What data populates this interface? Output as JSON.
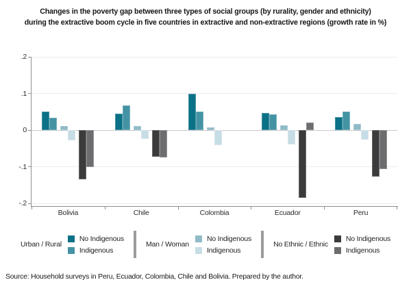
{
  "title": {
    "line1": "Changes in the poverty gap between three types of social groups (by rurality, gender and ethnicity)",
    "line2": "during the extractive boom cycle in five countries in extractive and non-extractive regions (growth rate in %)"
  },
  "source": "Source: Household surveys in Peru, Ecuador, Colombia, Chile and Bolivia. Prepared by the author.",
  "chart_data": {
    "type": "bar",
    "categories": [
      "Bolivia",
      "Chile",
      "Colombia",
      "Ecuador",
      "Peru"
    ],
    "series": [
      {
        "name": "Urban / Rural - No Indigenous",
        "color": "#0a7187",
        "values": [
          0.05,
          0.044,
          0.1,
          0.047,
          0.036
        ]
      },
      {
        "name": "Urban / Rural - Indigenous",
        "color": "#4493a4",
        "values": [
          0.033,
          0.067,
          0.05,
          0.043,
          0.051
        ]
      },
      {
        "name": "Man / Woman - No Indigenous",
        "color": "#8fbac7",
        "values": [
          0.012,
          0.012,
          0.008,
          0.013,
          0.016
        ]
      },
      {
        "name": "Man / Woman - Indigenous",
        "color": "#c7dde5",
        "values": [
          -0.028,
          -0.025,
          -0.042,
          -0.04,
          -0.026
        ]
      },
      {
        "name": "No Ethnic / Ethnic - No Indigenous",
        "color": "#3b3b3c",
        "values": [
          -0.135,
          -0.073,
          null,
          -0.185,
          -0.128
        ]
      },
      {
        "name": "No Ethnic / Ethnic - Indigenous",
        "color": "#6d6d70",
        "values": [
          -0.1,
          -0.075,
          null,
          0.02,
          -0.106
        ]
      }
    ],
    "ylim": [
      -0.2,
      0.2
    ],
    "yticks": [
      {
        "value": 0.2,
        "label": ".2"
      },
      {
        "value": 0.1,
        "label": ".1"
      },
      {
        "value": 0.0,
        "label": "0"
      },
      {
        "value": -0.1,
        "label": "-.1"
      },
      {
        "value": -0.2,
        "label": "-.2"
      }
    ],
    "grid": true,
    "legend_position": "bottom"
  },
  "legend": {
    "groups": [
      {
        "label": "Urban / Rural",
        "items": [
          {
            "label": "No Indigenous",
            "color": "#0a7187"
          },
          {
            "label": "Indigenous",
            "color": "#4493a4"
          }
        ]
      },
      {
        "label": "Man / Woman",
        "items": [
          {
            "label": "No Indigenous",
            "color": "#8fbac7"
          },
          {
            "label": "Indigenous",
            "color": "#c7dde5"
          }
        ]
      },
      {
        "label": "No Ethnic / Ethnic",
        "items": [
          {
            "label": "No Indigenous",
            "color": "#3b3b3c"
          },
          {
            "label": "Indigenous",
            "color": "#6d6d70"
          }
        ]
      }
    ]
  }
}
